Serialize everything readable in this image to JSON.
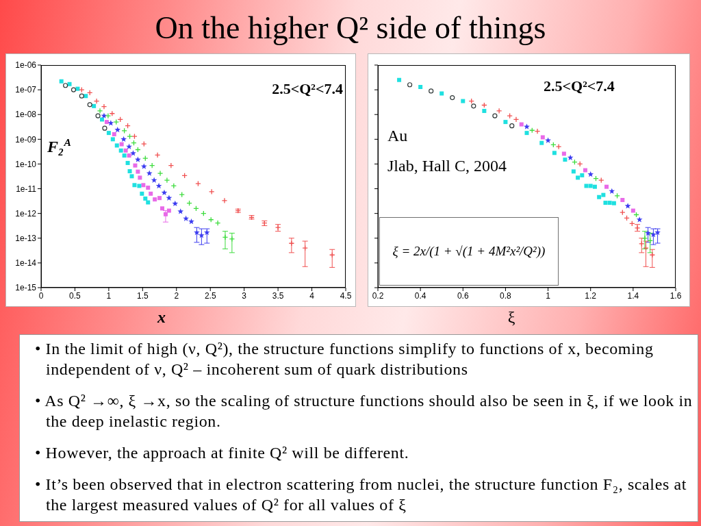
{
  "chart_data": [
    {
      "type": "scatter",
      "title": "On the higher Q² side of things",
      "xlabel": "x",
      "ylabel": "F₂$^{A}$",
      "annotations": [
        "2.5<Q²<7.4"
      ],
      "log": "y",
      "xlim": [
        0,
        4.5
      ],
      "xticks": [
        0,
        0.5,
        1,
        1.5,
        2,
        2.5,
        3,
        3.5,
        4,
        4.5
      ],
      "ylim": [
        1e-15,
        1e-06
      ],
      "yticks": [
        {
          "value": 1e-15,
          "label": "1e-15"
        },
        {
          "value": 1e-14,
          "label": "1e-14"
        },
        {
          "value": 1e-13,
          "label": "1e-13"
        },
        {
          "value": 1e-12,
          "label": "1e-12"
        },
        {
          "value": 1e-11,
          "label": "1e-11"
        },
        {
          "value": 1e-10,
          "label": "1e-10"
        },
        {
          "value": 1e-09,
          "label": "1e-09"
        },
        {
          "value": 1e-08,
          "label": "1e-08"
        },
        {
          "value": 1e-07,
          "label": "1e-07"
        },
        {
          "value": 1e-06,
          "label": "1e-06"
        }
      ],
      "series": [
        {
          "color": "#f05050",
          "marker": "cross",
          "x": [
            0.6,
            0.72,
            0.82,
            0.93,
            1.05,
            1.17,
            1.28,
            1.38,
            1.52,
            1.72,
            1.92,
            2.12,
            2.32,
            2.52,
            2.71,
            2.91,
            3.11,
            3.3,
            3.5,
            3.7,
            3.9,
            4.3
          ],
          "values": [
            1e-07,
            7.6e-08,
            3.5e-08,
            2.1e-08,
            1.1e-08,
            6.3e-09,
            3.5e-09,
            1.3e-09,
            6.5e-10,
            2.3e-10,
            8.7e-11,
            3.4e-11,
            1.6e-11,
            7.6e-12,
            3.3e-12,
            1.3e-12,
            6.9e-13,
            4.1e-13,
            2.7e-13,
            6.2e-14,
            4e-14,
            2.1e-14
          ],
          "errors": [
            null,
            null,
            null,
            null,
            null,
            null,
            null,
            null,
            null,
            null,
            null,
            null,
            null,
            null,
            null,
            [
              1.1e-12,
              1.5e-12
            ],
            [
              5.9e-13,
              8.3e-13
            ],
            [
              3.2e-13,
              5e-13
            ],
            [
              1.9e-13,
              3.6e-13
            ],
            [
              2.6e-14,
              1e-13
            ],
            [
              7.1e-15,
              7.6e-14
            ],
            [
              6.6e-15,
              3.5e-14
            ]
          ]
        },
        {
          "color": "#3ddc3d",
          "marker": "cross",
          "x": [
            0.87,
            0.99,
            1.11,
            1.23,
            1.31,
            1.37,
            1.43,
            1.54,
            1.64,
            1.76,
            1.86,
            1.96,
            2.08,
            2.19,
            2.29,
            2.4,
            2.51,
            2.61,
            2.72,
            2.82
          ],
          "values": [
            1.4e-08,
            8.9e-09,
            5e-09,
            2.2e-09,
            1.3e-09,
            7.1e-10,
            3.8e-10,
            1.7e-10,
            8.7e-11,
            4.2e-11,
            2.2e-11,
            1.3e-11,
            5.8e-12,
            2.6e-12,
            1.6e-12,
            1e-12,
            5.6e-13,
            4.1e-13,
            1.1e-13,
            9.3e-14
          ],
          "errors": [
            null,
            null,
            null,
            null,
            null,
            null,
            null,
            null,
            null,
            null,
            null,
            null,
            null,
            null,
            null,
            null,
            null,
            null,
            [
              3.7e-14,
              1.9e-13
            ],
            [
              2.6e-14,
              1.6e-13
            ]
          ]
        },
        {
          "color": "#3c3cf0",
          "marker": "star",
          "x": [
            0.93,
            1.03,
            1.13,
            1.22,
            1.3,
            1.36,
            1.43,
            1.52,
            1.6,
            1.67,
            1.74,
            1.82,
            1.89,
            1.98,
            2.06,
            2.14,
            2.22,
            2.3,
            2.37,
            2.45
          ],
          "values": [
            8.9e-09,
            4.5e-09,
            2.4e-09,
            1e-09,
            5e-10,
            2.7e-10,
            1.5e-10,
            7.9e-11,
            4.2e-11,
            2.2e-11,
            1.3e-11,
            6.9e-12,
            4.2e-12,
            2.5e-12,
            1.2e-12,
            6.2e-13,
            4.7e-13,
            1.7e-13,
            1.3e-13,
            1.7e-13
          ],
          "errors": [
            null,
            null,
            null,
            null,
            null,
            null,
            null,
            null,
            null,
            null,
            null,
            null,
            null,
            null,
            null,
            null,
            null,
            [
              6.8e-14,
              2.7e-13
            ],
            [
              5.5e-14,
              2.4e-13
            ],
            [
              6.3e-14,
              2.4e-13
            ]
          ]
        },
        {
          "color": "#e86ae8",
          "marker": "square",
          "x": [
            0.97,
            1.08,
            1.19,
            1.25,
            1.3,
            1.39,
            1.43,
            1.46,
            1.51,
            1.58,
            1.62,
            1.68,
            1.75,
            1.79,
            1.84,
            1.89
          ],
          "values": [
            5e-09,
            1.6e-09,
            6.3e-10,
            3.5e-10,
            2.2e-10,
            8.7e-11,
            4.9e-11,
            2.8e-11,
            1.4e-11,
            1.1e-11,
            6.3e-12,
            3.7e-12,
            4.2e-12,
            1.6e-12,
            9.3e-13,
            1.3e-12
          ],
          "errors": [
            null,
            null,
            null,
            null,
            null,
            null,
            null,
            null,
            null,
            null,
            null,
            null,
            null,
            null,
            [
              4.5e-13,
              1.3e-12
            ],
            null
          ]
        },
        {
          "color": "#1fe0e0",
          "marker": "square",
          "x": [
            0.3,
            0.42,
            0.54,
            0.66,
            0.78,
            0.9,
            1.0,
            1.06,
            1.12,
            1.18,
            1.23,
            1.28,
            1.31,
            1.34,
            1.38,
            1.45,
            1.49,
            1.54,
            1.58
          ],
          "values": [
            2.2e-07,
            1.7e-07,
            1.1e-07,
            5.6e-08,
            2.2e-08,
            6.3e-09,
            1.8e-09,
            1e-09,
            5.6e-10,
            3.5e-10,
            2.2e-10,
            1.1e-10,
            5.1e-11,
            3.2e-11,
            1.4e-11,
            1.3e-11,
            6.3e-12,
            4e-12,
            2.8e-12
          ]
        },
        {
          "color": "#303838",
          "marker": "circle",
          "x": [
            0.36,
            0.48,
            0.6,
            0.72,
            0.84,
            0.94
          ],
          "values": [
            1.5e-07,
            1e-07,
            5.6e-08,
            2.5e-08,
            8.9e-09,
            2.8e-09
          ]
        }
      ]
    },
    {
      "type": "scatter",
      "xlabel": "ξ",
      "annotations": [
        "2.5<Q²<7.4",
        "Au",
        "Jlab, Hall C, 2004",
        "ξ = 2x/(1 + √(1 + 4M²x²/Q²))"
      ],
      "log": "y",
      "tick_labels": "x",
      "xlim": [
        0.2,
        1.6
      ],
      "xticks": [
        0.2,
        0.4,
        0.6,
        0.8,
        1,
        1.2,
        1.4,
        1.6
      ],
      "ylim": [
        1e-15,
        1e-06
      ],
      "yticks": [
        1e-15,
        1e-14,
        1e-13,
        1e-12,
        1e-11,
        1e-10,
        1e-09,
        1e-08,
        1e-07,
        1e-06
      ],
      "series": [
        {
          "color": "#f05050",
          "marker": "cross",
          "x": [
            0.64,
            0.7,
            0.77,
            0.82,
            0.85,
            0.95,
            1.05,
            1.15,
            1.25,
            1.35,
            1.37,
            1.395,
            1.42,
            1.44,
            1.46,
            1.49
          ],
          "values": [
            3.5e-08,
            2.4e-08,
            1.4e-08,
            8.9e-09,
            6.3e-09,
            2.1e-09,
            5e-10,
            1e-10,
            2.2e-11,
            1.1e-12,
            6.5e-13,
            3.9e-13,
            2.6e-13,
            6e-14,
            4e-14,
            2.1e-14
          ],
          "errors": [
            null,
            null,
            null,
            null,
            null,
            null,
            null,
            null,
            null,
            null,
            null,
            null,
            [
              1.9e-13,
              3.6e-13
            ],
            [
              2.6e-14,
              1e-13
            ],
            [
              7.1e-15,
              7.6e-14
            ],
            [
              6.6e-15,
              3.5e-14
            ]
          ]
        },
        {
          "color": "#3ddc3d",
          "marker": "cross",
          "x": [
            0.925,
            1.025,
            1.125,
            1.225,
            1.325,
            1.415,
            1.455,
            1.48
          ],
          "values": [
            2.3e-09,
            6e-10,
            1.2e-10,
            2.6e-11,
            5.2e-12,
            8.9e-13,
            1e-13,
            7.9e-14
          ],
          "errors": [
            null,
            null,
            null,
            null,
            null,
            null,
            [
              3.7e-14,
              1.9e-13
            ],
            [
              2.6e-14,
              1.6e-13
            ]
          ]
        },
        {
          "color": "#3c3cf0",
          "marker": "star",
          "x": [
            0.9,
            1.0,
            1.105,
            1.2,
            1.3,
            1.375,
            1.43,
            1.47,
            1.495,
            1.515
          ],
          "values": [
            3.2e-09,
            8.9e-10,
            1.8e-10,
            3.8e-11,
            7.9e-12,
            2e-12,
            5.6e-13,
            1.6e-13,
            1.4e-13,
            1.7e-13
          ],
          "errors": [
            null,
            null,
            null,
            null,
            null,
            null,
            null,
            [
              6.8e-14,
              2.7e-13
            ],
            [
              5.5e-14,
              2.4e-13
            ],
            [
              6.3e-14,
              2.4e-13
            ]
          ]
        },
        {
          "color": "#e86ae8",
          "marker": "square",
          "x": [
            0.875,
            0.975,
            1.075,
            1.175,
            1.275,
            1.35,
            1.4
          ],
          "values": [
            4e-09,
            1.2e-09,
            2.6e-10,
            5.6e-11,
            1.2e-11,
            3.5e-12,
            1.3e-12
          ]
        },
        {
          "color": "#1fe0e0",
          "marker": "square",
          "x": [
            0.3,
            0.4,
            0.5,
            0.6,
            0.7,
            0.8,
            0.9,
            0.97,
            1.03,
            1.08,
            1.12,
            1.14,
            1.16,
            1.18,
            1.2,
            1.22,
            1.24,
            1.26,
            1.27,
            1.29,
            1.31
          ],
          "values": [
            2.5e-07,
            1.3e-07,
            7.1e-08,
            3.5e-08,
            1.4e-08,
            5e-09,
            1.8e-09,
            7.1e-10,
            2.8e-10,
            1.5e-10,
            5e-11,
            2.8e-11,
            3.5e-11,
            1.3e-11,
            1.3e-11,
            1.2e-11,
            4.6e-12,
            5.6e-12,
            2.7e-12,
            2.7e-12,
            2.6e-12
          ]
        },
        {
          "color": "#303838",
          "marker": "circle",
          "x": [
            0.35,
            0.45,
            0.55,
            0.65,
            0.75,
            0.83
          ],
          "values": [
            1.6e-07,
            8.9e-08,
            4.8e-08,
            2.2e-08,
            8.9e-09,
            3.5e-09
          ]
        }
      ]
    },
    {
      "type": "other",
      "annotations": [
        "• In the limit of high (ν, Q²), the structure functions simplify to functions of x, becoming independent of ν, Q² – incoherent sum of quark distributions",
        "• As Q² →∞, ξ →x, so the scaling of structure functions should also be seen in ξ, if we look in the deep inelastic region.",
        "• However, the approach at finite Q² will be different.",
        "• It’s been observed that in electron scattering from nuclei, the structure function F₂, scales at the largest measured values of Q² for all values of ξ"
      ]
    }
  ]
}
